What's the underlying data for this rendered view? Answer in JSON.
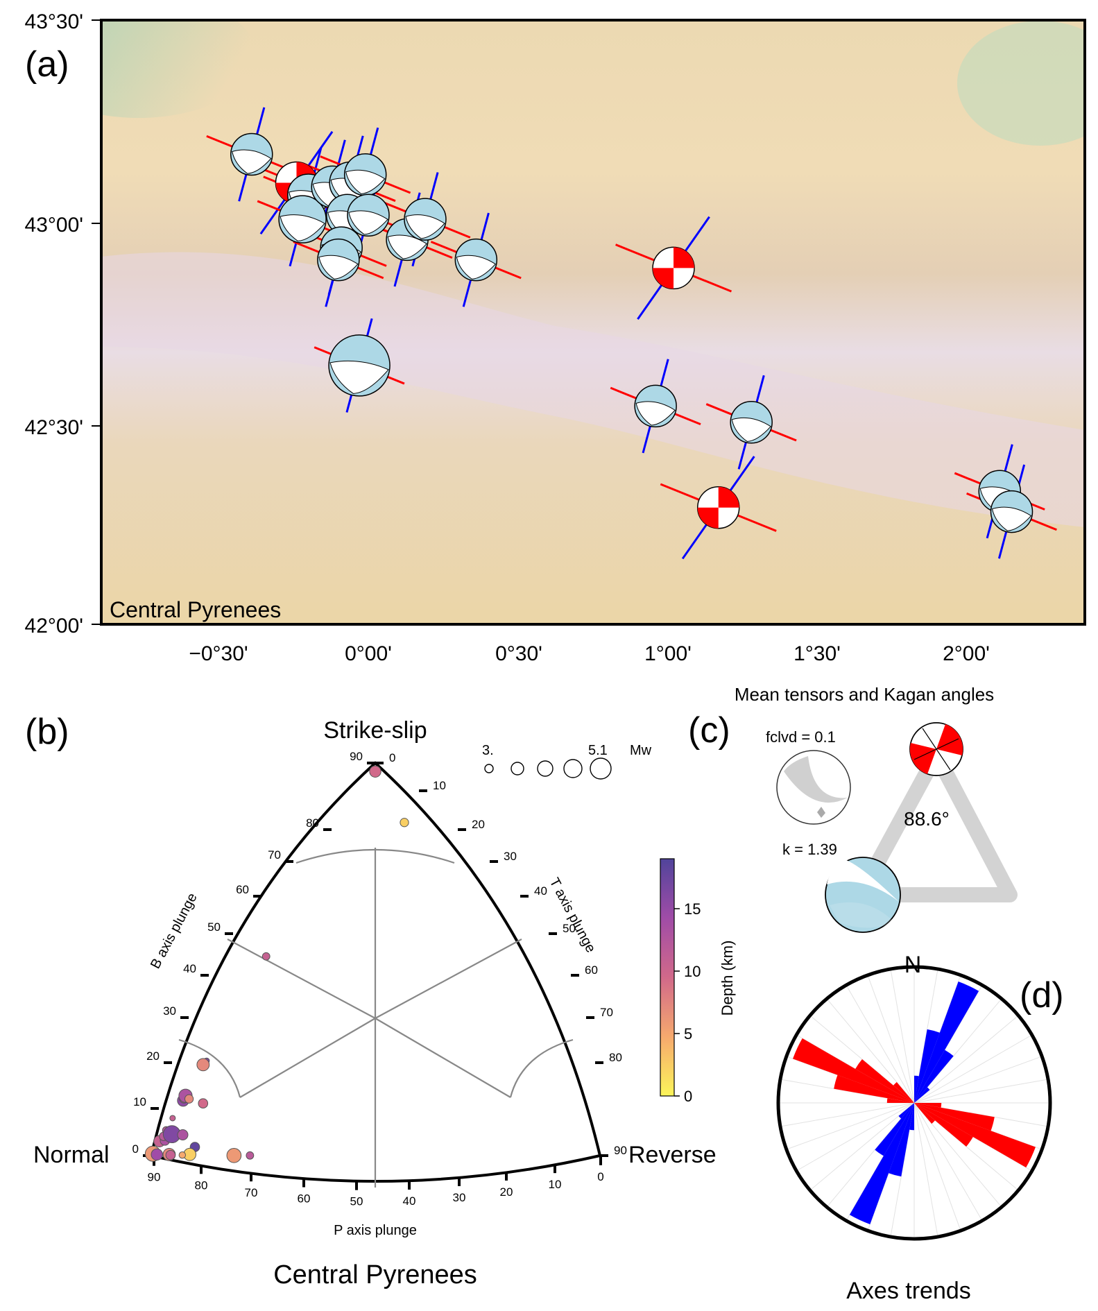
{
  "panel_a": {
    "label": "(a)",
    "region_label": "Central Pyrenees",
    "lat_ticks": [
      "43°30'",
      "43°00'",
      "42°30'",
      "42°00'"
    ],
    "lon_ticks": [
      "−0°30'",
      "0°00'",
      "0°30'",
      "1°00'",
      "1°30'",
      "2°00'"
    ],
    "colors": {
      "p_axis": "#ff0000",
      "t_axis": "#0000ff",
      "normal_fill": "#add8e6",
      "strike_slip_fill": "#ff0000"
    },
    "events": [
      {
        "lon": -0.39,
        "lat": 43.17,
        "mech": "normal"
      },
      {
        "lon": -0.24,
        "lat": 43.1,
        "mech": "strike-slip"
      },
      {
        "lon": -0.2,
        "lat": 43.07,
        "mech": "normal"
      },
      {
        "lon": -0.22,
        "lat": 43.01,
        "mech": "normal"
      },
      {
        "lon": -0.12,
        "lat": 43.09,
        "mech": "normal"
      },
      {
        "lon": -0.06,
        "lat": 43.1,
        "mech": "normal"
      },
      {
        "lon": -0.01,
        "lat": 43.12,
        "mech": "normal"
      },
      {
        "lon": -0.07,
        "lat": 43.02,
        "mech": "normal"
      },
      {
        "lon": 0.0,
        "lat": 43.02,
        "mech": "normal"
      },
      {
        "lon": -0.09,
        "lat": 42.94,
        "mech": "normal"
      },
      {
        "lon": -0.1,
        "lat": 42.91,
        "mech": "normal"
      },
      {
        "lon": 0.13,
        "lat": 42.96,
        "mech": "normal"
      },
      {
        "lon": 0.19,
        "lat": 43.01,
        "mech": "normal"
      },
      {
        "lon": 0.36,
        "lat": 42.91,
        "mech": "normal"
      },
      {
        "lon": 1.02,
        "lat": 42.89,
        "mech": "strike-slip"
      },
      {
        "lon": -0.03,
        "lat": 42.65,
        "mech": "normal"
      },
      {
        "lon": 0.96,
        "lat": 42.55,
        "mech": "normal"
      },
      {
        "lon": 1.28,
        "lat": 42.51,
        "mech": "normal"
      },
      {
        "lon": 1.17,
        "lat": 42.3,
        "mech": "strike-slip"
      },
      {
        "lon": 2.11,
        "lat": 42.34,
        "mech": "normal"
      },
      {
        "lon": 2.15,
        "lat": 42.29,
        "mech": "normal"
      }
    ]
  },
  "panel_b": {
    "label": "(b)",
    "corner_strike_slip": "Strike-slip",
    "corner_normal": "Normal",
    "corner_reverse": "Reverse",
    "b_axis_label": "B axis plunge",
    "t_axis_label": "T axis plunge",
    "p_axis_label": "P axis plunge",
    "region_label": "Central Pyrenees",
    "mag_legend": {
      "min_label": "3.",
      "max_label": "5.1",
      "unit": "Mw"
    },
    "colorbar": {
      "label": "Depth (km)",
      "ticks": [
        "0",
        "5",
        "10",
        "15"
      ]
    },
    "left_ticks": [
      "0",
      "10",
      "20",
      "30",
      "40",
      "50",
      "60",
      "70",
      "80",
      "90"
    ],
    "right_ticks": [
      "0",
      "10",
      "20",
      "30",
      "40",
      "50",
      "60",
      "70",
      "80",
      "90"
    ],
    "bottom_ticks": [
      "90",
      "80",
      "70",
      "60",
      "50",
      "40",
      "30",
      "20",
      "10",
      "0"
    ],
    "chart_data": {
      "type": "scatter",
      "x_variable": "P axis plunge",
      "color_variable": "Depth (km)",
      "size_variable": "Mw",
      "points": [
        {
          "p": 6,
          "t": 6,
          "b": 83,
          "depth": 8,
          "mw": 3.5
        },
        {
          "p": 6,
          "t": 22,
          "b": 67,
          "depth": 2,
          "mw": 3.2
        },
        {
          "p": 44,
          "t": 3,
          "b": 45,
          "depth": 9,
          "mw": 3.1
        },
        {
          "p": 59,
          "t": 3,
          "b": 29,
          "depth": 14,
          "mw": 2.9
        },
        {
          "p": 62,
          "t": 0,
          "b": 29,
          "depth": 6,
          "mw": 3.6
        },
        {
          "p": 68,
          "t": 2,
          "b": 22,
          "depth": 13,
          "mw": 3.5
        },
        {
          "p": 65,
          "t": 1,
          "b": 22,
          "depth": 10,
          "mw": 3.3
        },
        {
          "p": 62,
          "t": 1,
          "b": 22,
          "depth": 11,
          "mw": 3.7
        },
        {
          "p": 58,
          "t": 12,
          "b": 20,
          "depth": 8,
          "mw": 3.3
        },
        {
          "p": 60,
          "t": 6,
          "b": 21,
          "depth": 6,
          "mw": 3.2
        },
        {
          "p": 72,
          "t": 0,
          "b": 18,
          "depth": 9,
          "mw": 2.9
        },
        {
          "p": 67,
          "t": 2,
          "b": 14,
          "depth": 10,
          "mw": 3.1
        },
        {
          "p": 78,
          "t": 0,
          "b": 11,
          "depth": 9,
          "mw": 3.5
        },
        {
          "p": 72,
          "t": 6,
          "b": 11,
          "depth": 11,
          "mw": 3.3
        },
        {
          "p": 66,
          "t": 3,
          "b": 12,
          "depth": 10,
          "mw": 3.2
        },
        {
          "p": 59,
          "t": 7,
          "b": 12,
          "depth": 14,
          "mw": 4.1
        },
        {
          "p": 52,
          "t": 10,
          "b": 11,
          "depth": 11,
          "mw": 3.4
        },
        {
          "p": 51,
          "t": 14,
          "b": 7,
          "depth": 16,
          "mw": 3.3
        },
        {
          "p": 83,
          "t": 2,
          "b": 4,
          "depth": 5,
          "mw": 3.9
        },
        {
          "p": 78,
          "t": 6,
          "b": 3,
          "depth": 12,
          "mw": 3.5
        },
        {
          "p": 72,
          "t": 11,
          "b": 3,
          "depth": 6,
          "mw": 3.6
        },
        {
          "p": 65,
          "t": 16,
          "b": 3,
          "depth": 2,
          "mw": 3.6
        },
        {
          "p": 65,
          "t": 11,
          "b": 2,
          "depth": 9,
          "mw": 3.3
        },
        {
          "p": 63,
          "t": 14,
          "b": 2,
          "depth": 4,
          "mw": 3.0
        },
        {
          "p": 52,
          "t": 22,
          "b": 1,
          "depth": 5,
          "mw": 3.8
        },
        {
          "p": 50,
          "t": 24,
          "b": 1,
          "depth": 10,
          "mw": 3.1
        }
      ]
    }
  },
  "panel_c": {
    "label": "(c)",
    "title": "Mean tensors and Kagan angles",
    "fclvd": "fclvd = 0.1",
    "kagan_angle": "88.6°",
    "k": "k = 1.39"
  },
  "panel_d": {
    "label": "(d)",
    "north": "N",
    "title": "Axes trends",
    "chart_data": {
      "type": "rose",
      "bin_deg": 10,
      "p_axis_trends": [
        {
          "az": 115,
          "r": 0.95
        },
        {
          "az": 105,
          "r": 0.6
        },
        {
          "az": 125,
          "r": 0.5
        },
        {
          "az": 95,
          "r": 0.2
        },
        {
          "az": 135,
          "r": 0.2
        }
      ],
      "t_axis_trends": [
        {
          "az": 25,
          "r": 0.95
        },
        {
          "az": 35,
          "r": 0.45
        },
        {
          "az": 15,
          "r": 0.55
        },
        {
          "az": 45,
          "r": 0.15
        },
        {
          "az": 5,
          "r": 0.2
        }
      ]
    }
  }
}
